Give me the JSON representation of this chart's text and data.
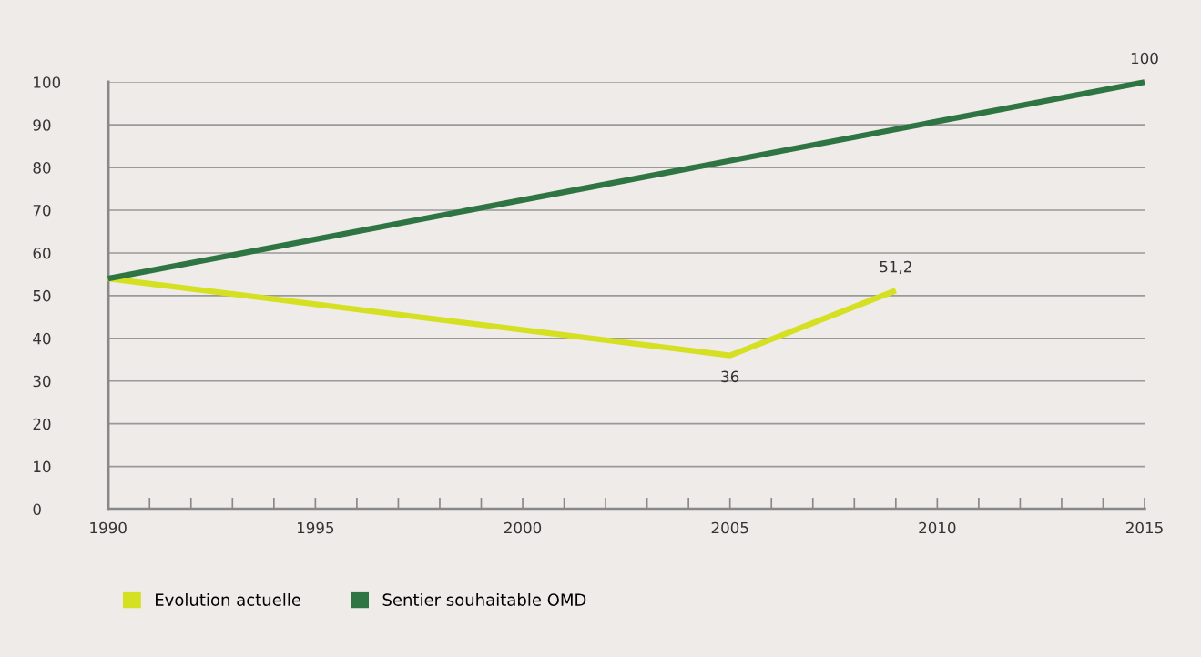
{
  "chart_data": {
    "type": "line",
    "series": [
      {
        "name": "Evolution actuelle",
        "color": "#d4e021",
        "x": [
          1990,
          2005,
          2009
        ],
        "values": [
          54,
          36,
          51.2
        ],
        "value_labels": [
          null,
          "36",
          "51,2"
        ]
      },
      {
        "name": "Sentier souhaitable OMD",
        "color": "#2e7543",
        "x": [
          1990,
          2015
        ],
        "values": [
          54,
          100
        ],
        "value_labels": [
          null,
          "100"
        ]
      }
    ],
    "xlim": [
      1990,
      2015
    ],
    "xticks": [
      1990,
      {
        "value": 1991,
        "label": null
      },
      {
        "value": 1992,
        "label": null
      },
      {
        "value": 1993,
        "label": null
      },
      {
        "value": 1994,
        "label": null
      },
      1995,
      {
        "value": 1996,
        "label": null
      },
      {
        "value": 1997,
        "label": null
      },
      {
        "value": 1998,
        "label": null
      },
      {
        "value": 1999,
        "label": null
      },
      2000,
      {
        "value": 2001,
        "label": null
      },
      {
        "value": 2002,
        "label": null
      },
      {
        "value": 2003,
        "label": null
      },
      {
        "value": 2004,
        "label": null
      },
      2005,
      {
        "value": 2006,
        "label": null
      },
      {
        "value": 2007,
        "label": null
      },
      {
        "value": 2008,
        "label": null
      },
      {
        "value": 2009,
        "label": null
      },
      2010,
      {
        "value": 2011,
        "label": null
      },
      {
        "value": 2012,
        "label": null
      },
      {
        "value": 2013,
        "label": null
      },
      {
        "value": 2014,
        "label": null
      },
      2015
    ],
    "ylim": [
      0,
      100
    ],
    "yticks": [
      0,
      10,
      20,
      30,
      40,
      50,
      60,
      70,
      80,
      90,
      100
    ],
    "grid": "y",
    "legend": "bottom left",
    "marker": "none",
    "line_style": "solid"
  }
}
